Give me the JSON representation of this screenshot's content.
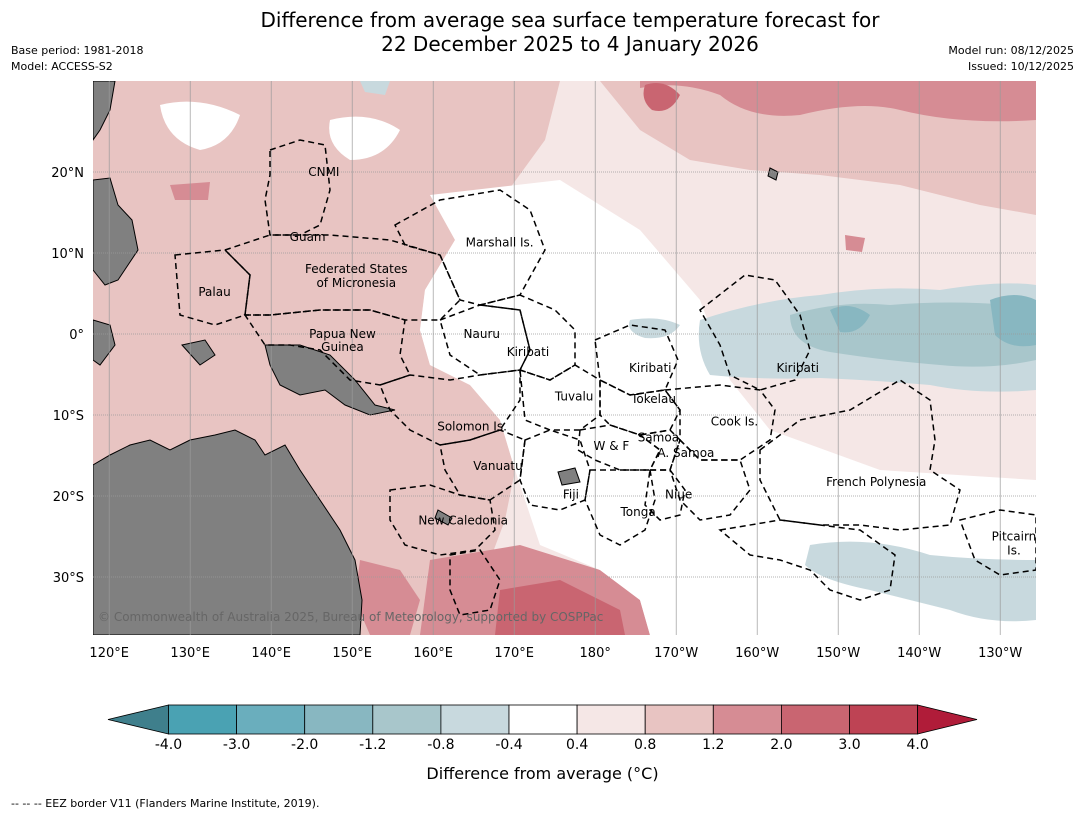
{
  "title_line1": "Difference from average sea surface temperature forecast for",
  "title_line2": "22 December 2025 to 4 January 2026",
  "meta_left": {
    "base_period": "Base period: 1981-2018",
    "model": "Model: ACCESS-S2"
  },
  "meta_right": {
    "model_run": "Model run: 08/12/2025",
    "issued": "Issued: 10/12/2025"
  },
  "lon_labels": [
    "120°E",
    "130°E",
    "140°E",
    "150°E",
    "160°E",
    "170°E",
    "180°",
    "170°W",
    "160°W",
    "150°W",
    "140°W",
    "130°W"
  ],
  "lat_labels": [
    "20°N",
    "10°N",
    "0°",
    "10°S",
    "20°S",
    "30°S"
  ],
  "region_labels": [
    {
      "text": "CNMI",
      "lon": 146.5,
      "lat": 20.0
    },
    {
      "text": "Guam",
      "lon": 144.5,
      "lat": 12.0
    },
    {
      "text": "Marshall Is.",
      "lon": 168.2,
      "lat": 11.3
    },
    {
      "text": "Federated States",
      "lon": 150.5,
      "lat": 8.0
    },
    {
      "text": "of Micronesia",
      "lon": 150.5,
      "lat": 6.3
    },
    {
      "text": "Palau",
      "lon": 133.0,
      "lat": 5.2
    },
    {
      "text": "Papua New",
      "lon": 148.8,
      "lat": 0.0
    },
    {
      "text": "Guinea",
      "lon": 148.8,
      "lat": -1.6
    },
    {
      "text": "Nauru",
      "lon": 166.0,
      "lat": 0.0
    },
    {
      "text": "Kiribati",
      "lon": 171.7,
      "lat": -2.2
    },
    {
      "text": "Kiribati",
      "lon": -173.2,
      "lat": -4.2
    },
    {
      "text": "Kiribati",
      "lon": -155.0,
      "lat": -4.2
    },
    {
      "text": "Tuvalu",
      "lon": 177.4,
      "lat": -7.7
    },
    {
      "text": "Tokelau",
      "lon": -172.8,
      "lat": -8.0
    },
    {
      "text": "Cook Is.",
      "lon": -162.8,
      "lat": -10.8
    },
    {
      "text": "Solomon Is.",
      "lon": 164.8,
      "lat": -11.4
    },
    {
      "text": "Samoa",
      "lon": -172.2,
      "lat": -12.8
    },
    {
      "text": "W & F",
      "lon": -178.0,
      "lat": -13.8
    },
    {
      "text": "A. Samoa",
      "lon": -168.8,
      "lat": -14.7
    },
    {
      "text": "Vanuatu",
      "lon": 168.0,
      "lat": -16.3
    },
    {
      "text": "French Polynesia",
      "lon": -145.3,
      "lat": -18.3
    },
    {
      "text": "Niue",
      "lon": -169.7,
      "lat": -19.8
    },
    {
      "text": "Fiji",
      "lon": 177.0,
      "lat": -19.8
    },
    {
      "text": "Tonga",
      "lon": -174.7,
      "lat": -22.0
    },
    {
      "text": "New Caledonia",
      "lon": 163.7,
      "lat": -23.0
    },
    {
      "text": "Pitcairn",
      "lon": -128.3,
      "lat": -25.0
    },
    {
      "text": "Is.",
      "lon": -128.3,
      "lat": -26.7
    }
  ],
  "copyright": "© Commonwealth of Australia 2025, Bureau of Meteorology, supported by COSPPac",
  "colorbar": {
    "ticks": [
      "-4.0",
      "-3.0",
      "-2.0",
      "-1.2",
      "-0.8",
      "-0.4",
      "0.4",
      "0.8",
      "1.2",
      "2.0",
      "3.0",
      "4.0"
    ],
    "colors": [
      "#3f7f8c",
      "#4aa2b3",
      "#6aaebd",
      "#88b7c1",
      "#a8c6cb",
      "#c8d9de",
      "#ffffff",
      "#f5e7e6",
      "#e8c4c2",
      "#d68c94",
      "#c96571",
      "#be4354",
      "#b01c39"
    ],
    "label": "Difference from average (°C)"
  },
  "footer": "-- -- -- EEZ border V11 (Flanders Marine Institute, 2019).",
  "map_colors": {
    "land": "#808080",
    "grid": "#9a9a9a",
    "copyright_text": "#666666"
  }
}
